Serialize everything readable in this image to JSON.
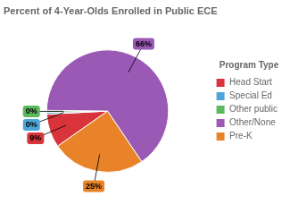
{
  "chart_data": {
    "type": "pie",
    "title": "Percent of 4-Year-Olds Enrolled in Public ECE",
    "categories": [
      "Head Start",
      "Special Ed",
      "Other public",
      "Other/None",
      "Pre-K"
    ],
    "values": [
      9,
      0.5,
      0.5,
      66,
      25
    ],
    "value_labels": [
      "9%",
      "0%",
      "0%",
      "66%",
      "25%"
    ],
    "colors": [
      "#d9343b",
      "#4da6d9",
      "#5cb85c",
      "#9b59b6",
      "#e8832a"
    ],
    "data_labels": true,
    "legend": "right",
    "legend_title": "Program Type"
  }
}
